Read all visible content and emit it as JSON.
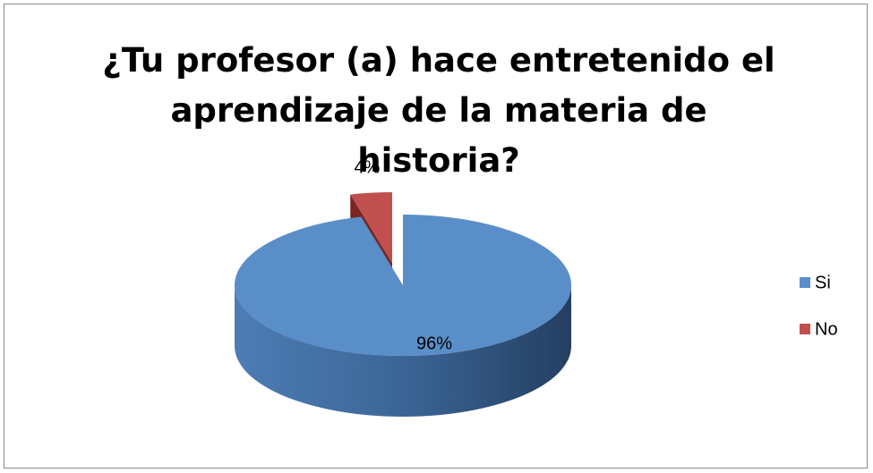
{
  "chart_data": {
    "type": "pie3d",
    "title": "¿Tu profesor (a) hace entretenido el aprendizaje de la materia de historia?",
    "categories": [
      "Si",
      "No"
    ],
    "values": [
      96,
      4
    ],
    "value_labels": [
      "96%",
      "4%"
    ],
    "colors": [
      "#5a8ec8",
      "#c0504d"
    ],
    "legend": "right"
  }
}
